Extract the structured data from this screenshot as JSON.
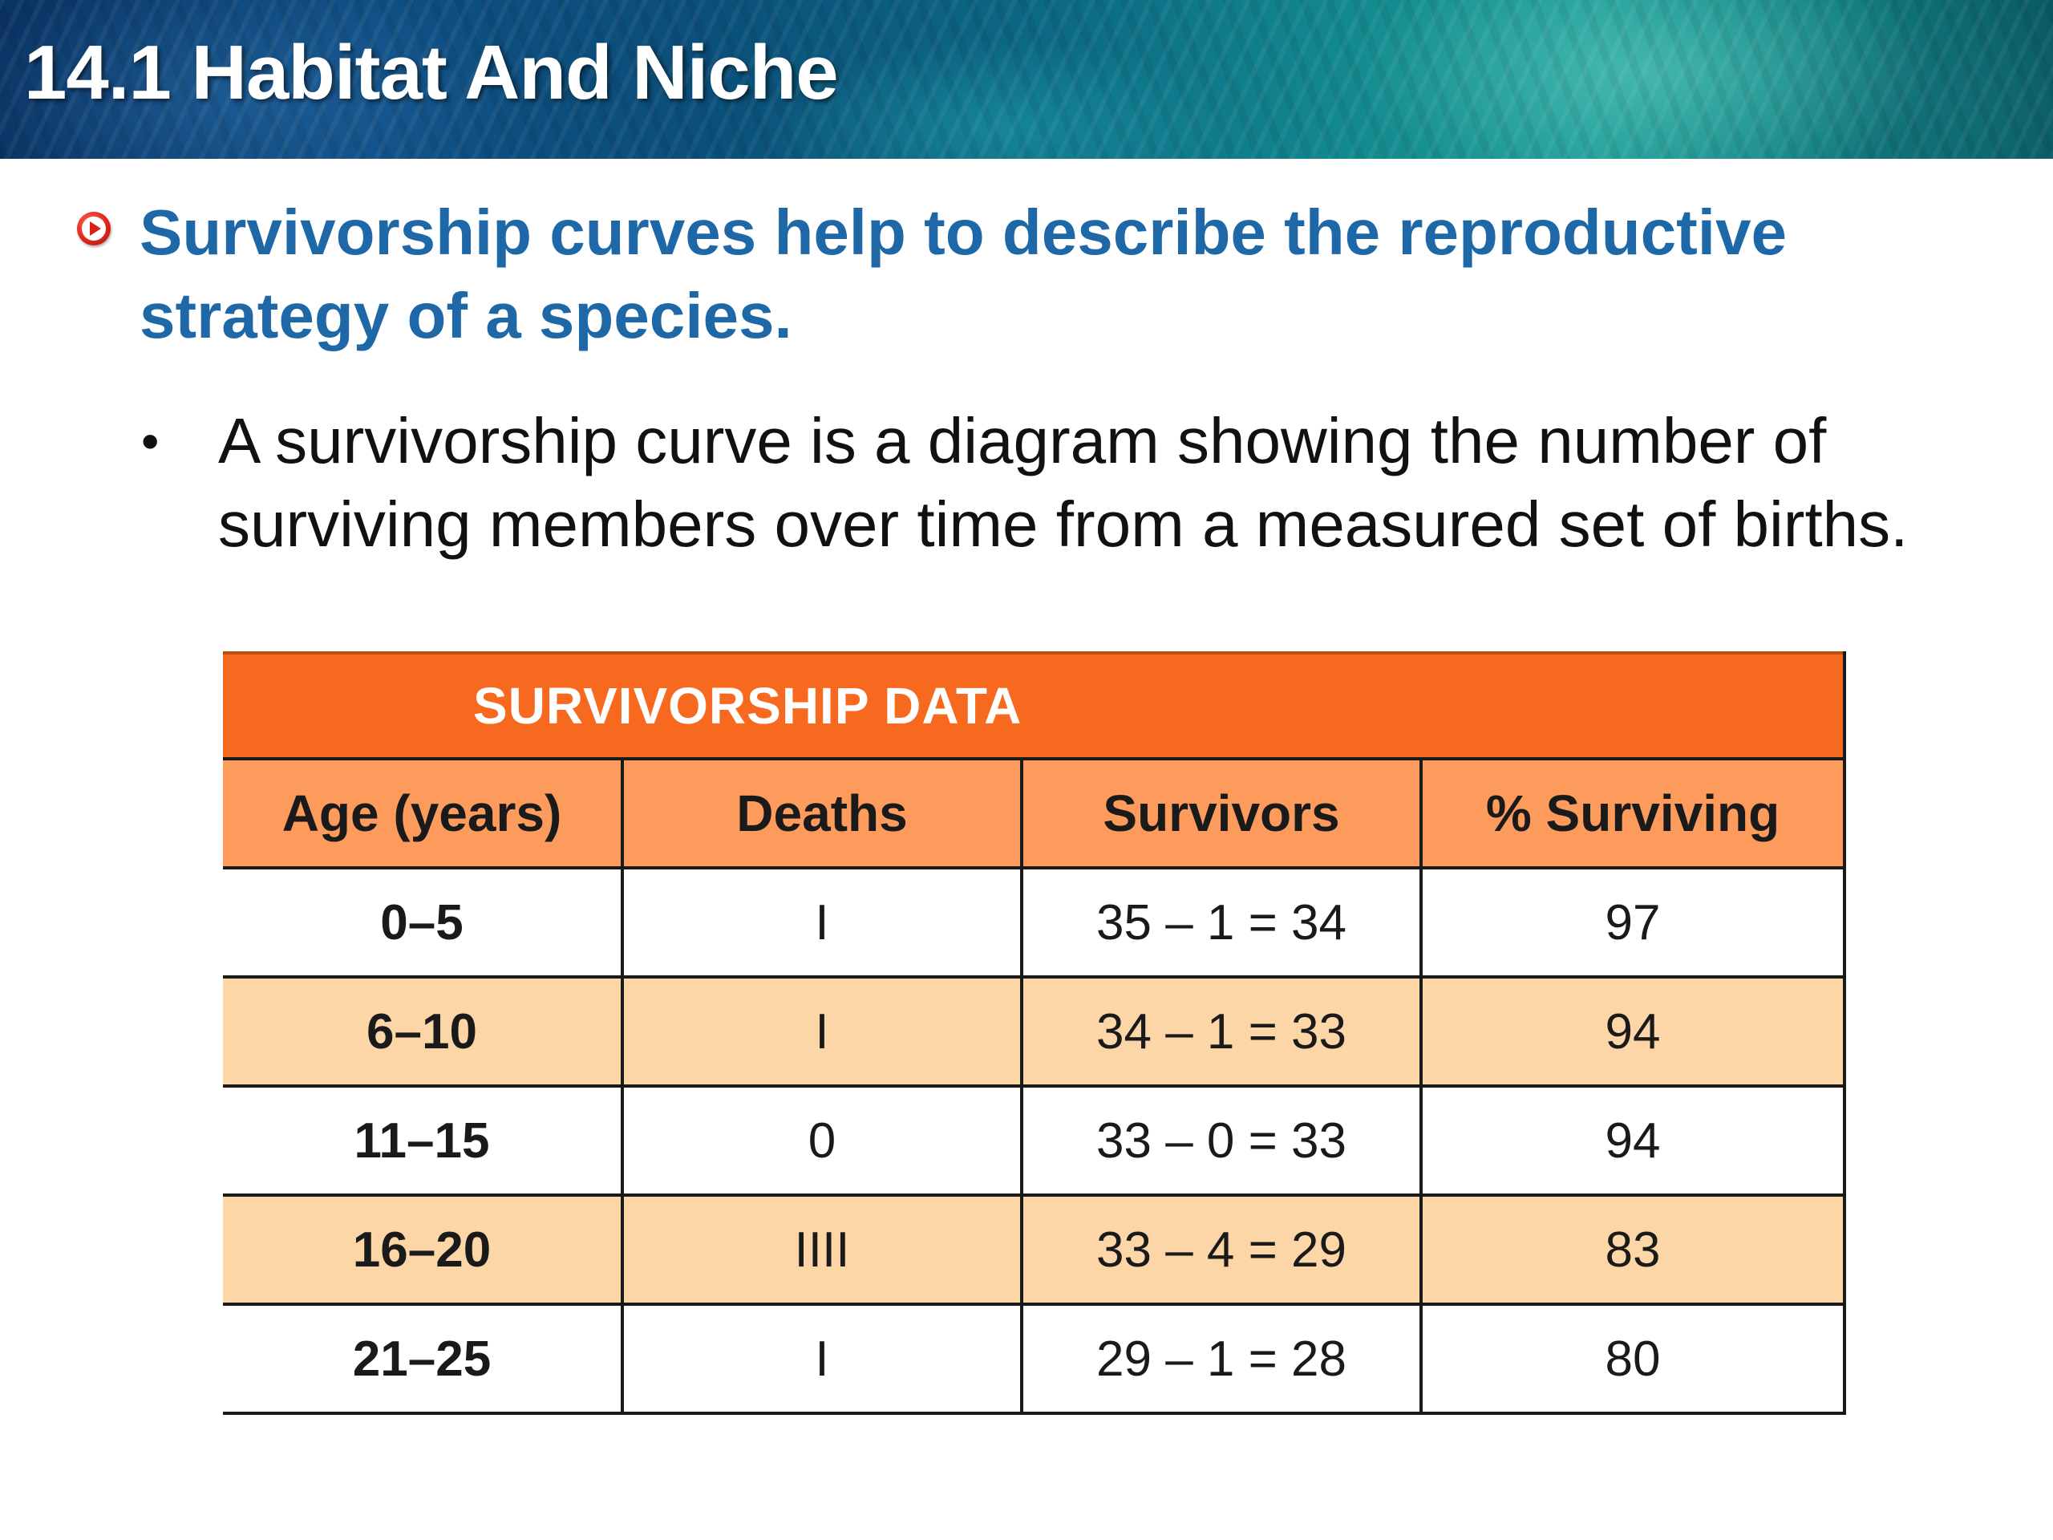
{
  "header": {
    "title": "14.1 Habitat And Niche"
  },
  "main_point": {
    "icon": "red-circle-arrow-bullet",
    "text": "Survivorship curves help to describe the reproductive strategy of a species."
  },
  "sub_point": {
    "bullet": "•",
    "text": "A survivorship curve is a diagram showing the number of surviving members over time from a measured set of births."
  },
  "table": {
    "title": "SURVIVORSHIP DATA",
    "columns": [
      "Age (years)",
      "Deaths",
      "Survivors",
      "% Surviving"
    ],
    "rows": [
      [
        "0–5",
        "I",
        "35 – 1 = 34",
        "97"
      ],
      [
        "6–10",
        "I",
        "34 – 1 = 33",
        "94"
      ],
      [
        "11–15",
        "0",
        "33 – 0 = 33",
        "94"
      ],
      [
        "16–20",
        "IIII",
        "33 – 4 = 29",
        "83"
      ],
      [
        "21–25",
        "I",
        "29 – 1 = 28",
        "80"
      ]
    ],
    "colors": {
      "title_bg": "#f7691f",
      "header_bg": "#fc9b5b",
      "alt_row_bg": "#fdd6a7"
    }
  }
}
